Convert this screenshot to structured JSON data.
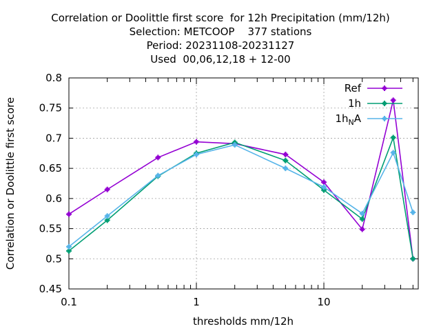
{
  "chart_data": {
    "type": "line",
    "title_lines": [
      "Correlation or Doolittle first score  for 12h Precipitation (mm/12h)",
      "Selection: METCOOP    377 stations",
      "Period: 20231108-20231127",
      "Used  00,06,12,18 + 12-00"
    ],
    "xlabel": "thresholds mm/12h",
    "ylabel": "Correlation or Doolittle first score",
    "x_scale": "log",
    "xlim": [
      0.1,
      55
    ],
    "ylim": [
      0.45,
      0.8
    ],
    "x_tick_labels": [
      {
        "value": 0.1,
        "label": "0.1"
      },
      {
        "value": 1,
        "label": "1"
      },
      {
        "value": 10,
        "label": "10"
      }
    ],
    "y_ticks": [
      0.45,
      0.5,
      0.55,
      0.6,
      0.65,
      0.7,
      0.75,
      0.8
    ],
    "y_tick_labels": [
      "0.45",
      "0.5",
      "0.55",
      "0.6",
      "0.65",
      "0.7",
      "0.75",
      "0.8"
    ],
    "grid": true,
    "legend_position": "top-right",
    "x": [
      0.1,
      0.2,
      0.5,
      1,
      2,
      5,
      10,
      20,
      35,
      50
    ],
    "series": [
      {
        "name": "Ref",
        "color": "#9400d3",
        "values": [
          0.574,
          0.615,
          0.668,
          0.694,
          0.691,
          0.673,
          0.627,
          0.549,
          0.763,
          0.5
        ]
      },
      {
        "name": "1h",
        "color": "#009e73",
        "values": [
          0.513,
          0.564,
          0.637,
          0.675,
          0.693,
          0.663,
          0.614,
          0.566,
          0.701,
          0.5
        ]
      },
      {
        "name": "1h_NA",
        "legend_base": "1h",
        "legend_sub": "N",
        "legend_rest": "A",
        "color": "#56b4e9",
        "values": [
          0.52,
          0.571,
          0.638,
          0.673,
          0.689,
          0.65,
          0.619,
          0.575,
          0.676,
          0.577
        ]
      }
    ]
  }
}
